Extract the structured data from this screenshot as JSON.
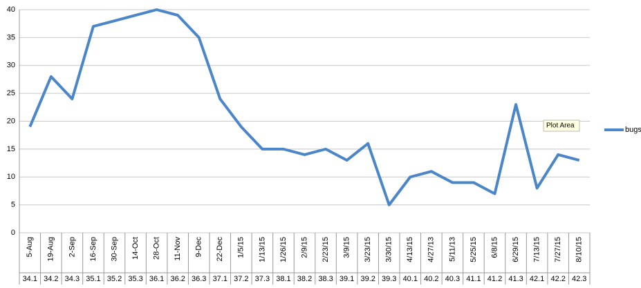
{
  "chart_data": {
    "type": "line",
    "categories": [
      "5-Aug",
      "19-Aug",
      "2-Sep",
      "16-Sep",
      "30-Sep",
      "14-Oct",
      "28-Oct",
      "11-Nov",
      "9-Dec",
      "22-Dec",
      "1/5/15",
      "1/13/15",
      "1/26/15",
      "2/9/15",
      "2/23/15",
      "3/9/15",
      "3/23/15",
      "3/30/15",
      "4/13/15",
      "4/27/13",
      "5/11/13",
      "5/25/15",
      "6/8/15",
      "6/29/15",
      "7/13/15",
      "7/27/15",
      "8/10/15"
    ],
    "categories_level2": [
      "34.1",
      "34.2",
      "34.3",
      "35.1",
      "35.2",
      "35.3",
      "36.1",
      "36.2",
      "36.3",
      "37.1",
      "37.2",
      "37.3",
      "38.1",
      "38.2",
      "38.3",
      "39.1",
      "39.2",
      "39.3",
      "40.1",
      "40.2",
      "40.3",
      "41.1",
      "41.2",
      "41.3",
      "42.1",
      "42.2",
      "42.3"
    ],
    "series": [
      {
        "name": "bugs",
        "color": "#4a86c8",
        "values": [
          19,
          28,
          24,
          37,
          38,
          39,
          40,
          39,
          35,
          24,
          19,
          15,
          15,
          14,
          15,
          13,
          16,
          5,
          10,
          11,
          9,
          9,
          7,
          23,
          8,
          14,
          13
        ]
      }
    ],
    "ylim": [
      0,
      40
    ],
    "yticks": [
      0,
      5,
      10,
      15,
      20,
      25,
      30,
      35,
      40
    ],
    "grid": true,
    "legend": "right",
    "tooltip": "Plot Area"
  }
}
